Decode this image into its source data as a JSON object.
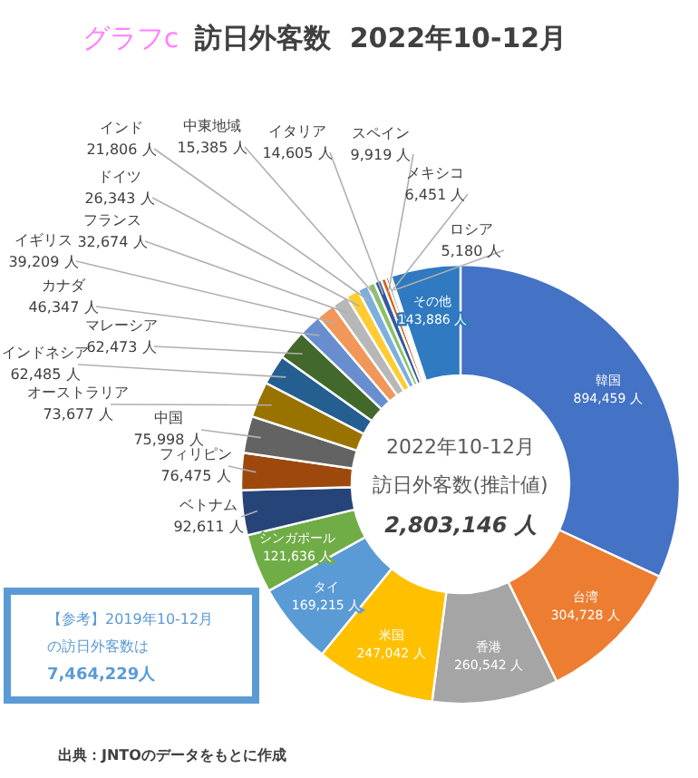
{
  "chart_data": {
    "type": "donut",
    "title": "訪日外客数  2022年10-12月",
    "subtitle": "グラフc",
    "categories": [
      "韓国",
      "台湾",
      "香港",
      "米国",
      "タイ",
      "シンガポール",
      "ベトナム",
      "フィリピン",
      "中国",
      "オーストラリア",
      "インドネシア",
      "マレーシア",
      "カナダ",
      "イギリス",
      "フランス",
      "ドイツ",
      "インド",
      "中東地域",
      "イタリア",
      "スペイン",
      "メキシコ",
      "ロシア",
      "その他"
    ],
    "values": [
      894459,
      304728,
      260542,
      247042,
      169215,
      121636,
      92611,
      76475,
      75998,
      73677,
      62485,
      62473,
      46347,
      39209,
      32674,
      26343,
      21806,
      15385,
      14605,
      9919,
      6451,
      5180,
      143886
    ],
    "colors": [
      "#4472c4",
      "#ed7d31",
      "#a5a5a5",
      "#ffc000",
      "#5b9bd5",
      "#70ad47",
      "#264478",
      "#9e480e",
      "#636363",
      "#997300",
      "#255e91",
      "#43682b",
      "#698ed0",
      "#f1975a",
      "#b7b7b7",
      "#ffcd33",
      "#7cafdd",
      "#8cc168",
      "#335aa1",
      "#d26012",
      "#848484",
      "#cc9a00",
      "#2f7ac0"
    ],
    "value_labels": [
      "894,459 人",
      "304,728 人",
      "260,542 人",
      "247,042 人",
      "169,215 人",
      "121,636 人",
      "92,611 人",
      "76,475 人",
      "75,998 人",
      "73,677 人",
      "62,485 人",
      "62,473 人",
      "46,347 人",
      "39,209 人",
      "32,674 人",
      "26,343 人",
      "21,806 人",
      "15,385 人",
      "14,605 人",
      "9,919 人",
      "6,451 人",
      "5,180 人",
      "143,886 人"
    ],
    "annotations": [
      "2022年10-12月",
      "訪日外客数(推計値)",
      "2,803,146 人",
      "【参考】2019年10-12月",
      "の訪日外客数は",
      "7,464,229人",
      "出典：JNTOのデータをもとに作成"
    ]
  }
}
